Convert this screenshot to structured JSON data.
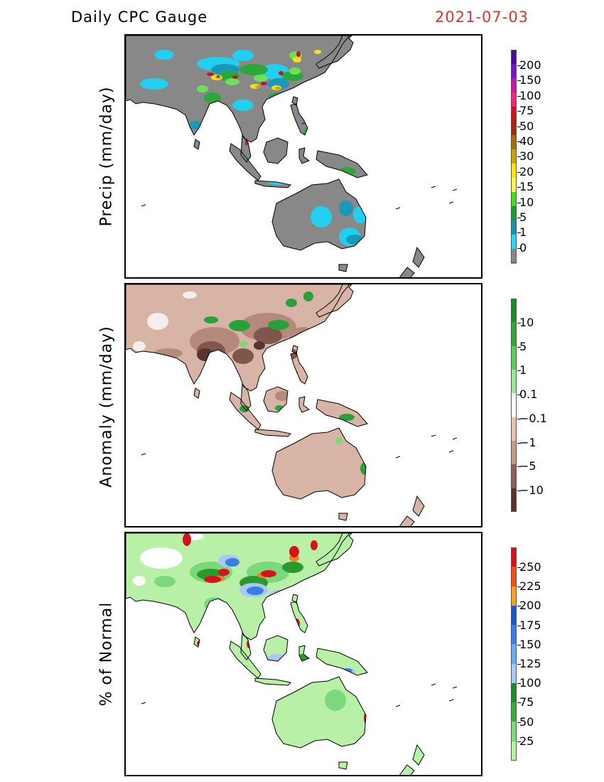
{
  "header": {
    "title": "Daily CPC Gauge",
    "date": "2021-07-03"
  },
  "panels": [
    {
      "id": "precip",
      "ylabel": "Precip (mm/day)",
      "colorbar": {
        "labels": [
          "200",
          "150",
          "100",
          "75",
          "50",
          "40",
          "30",
          "20",
          "15",
          "10",
          "5",
          "1",
          "0"
        ],
        "colors": [
          "#4b0c8e",
          "#7a12c8",
          "#c21aa8",
          "#ee2a74",
          "#c8141e",
          "#9e2a10",
          "#a86b0c",
          "#c6a40c",
          "#f6e40c",
          "#f8f85e",
          "#4cd62e",
          "#1e9a2e",
          "#1f8fb0",
          "#2ad6f6",
          "#888888"
        ]
      },
      "map_colors": {
        "base": "#888888",
        "cyan": "#22cfee",
        "teal": "#1a98b8",
        "green": "#2aa83c",
        "lgreen": "#6ee058",
        "yellow": "#f0e020",
        "orange": "#d0a010",
        "red": "#c01818",
        "purple": "#8a18b0"
      }
    },
    {
      "id": "anomaly",
      "ylabel": "Anomaly (mm/day)",
      "colorbar": {
        "labels": [
          "10",
          "5",
          "1",
          "0.1",
          "−0.1",
          "−1",
          "−5",
          "−10"
        ],
        "colors": [
          "#1e8a2a",
          "#2ea83a",
          "#5ccc5c",
          "#9ae69a",
          "#ffffff",
          "#e4c2b2",
          "#c29a88",
          "#8e6058",
          "#5a3030"
        ]
      },
      "map_colors": {
        "base": "#d8b4a6",
        "mid": "#b48a7c",
        "dark": "#7e564c",
        "vdark": "#5a3530",
        "green": "#2aa03a",
        "lgreen": "#7cd87c",
        "white": "#f4eeec"
      }
    },
    {
      "id": "pct",
      "ylabel": "% of Normal",
      "colorbar": {
        "labels": [
          "250",
          "225",
          "200",
          "175",
          "150",
          "125",
          "100",
          "75",
          "50",
          "25"
        ],
        "colors": [
          "#d4141a",
          "#f04e1a",
          "#f6a02a",
          "#1858c8",
          "#3a7ee0",
          "#6aaaf0",
          "#a8c8f6",
          "#1e8a2a",
          "#3aac3a",
          "#7cd87c",
          "#b8f0a8"
        ]
      },
      "map_colors": {
        "base": "#b8f0a8",
        "mid": "#7cd87c",
        "dgreen": "#2a9a2a",
        "blue": "#3a7ee0",
        "lblue": "#a8c8f6",
        "red": "#d4141a",
        "orange": "#f08030",
        "white": "#ffffff"
      }
    }
  ]
}
